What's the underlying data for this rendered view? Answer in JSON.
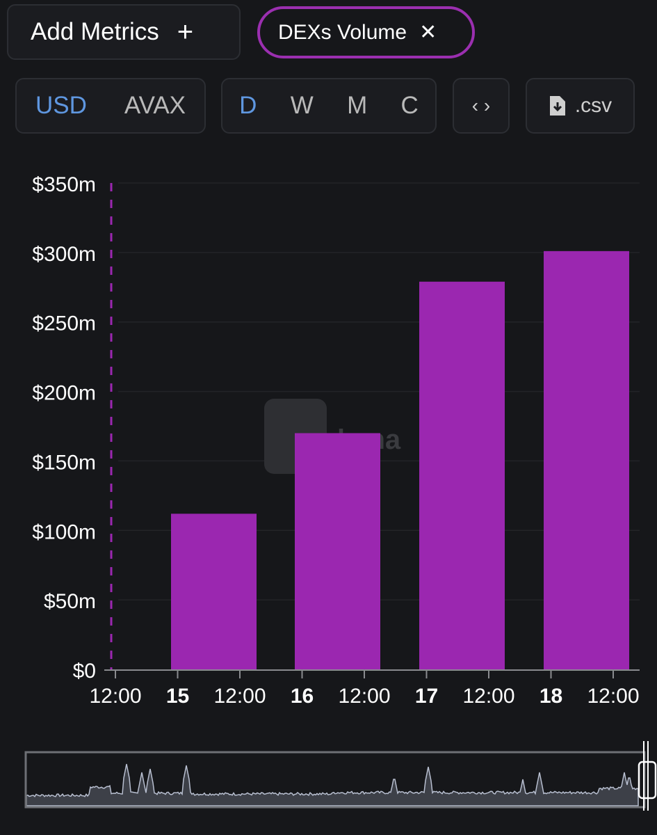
{
  "toolbar": {
    "add_metrics_label": "Add Metrics",
    "add_icon": "plus-icon",
    "metric_chip": "DEXs Volume",
    "chip_close_icon": "close-icon",
    "currency": [
      "USD",
      "AVAX"
    ],
    "currency_selected": "USD",
    "periods": [
      "D",
      "W",
      "M",
      "C"
    ],
    "period_selected": "D",
    "embed_icon": "code-brackets-icon",
    "csv_label": ".csv",
    "csv_icon": "file-download-icon"
  },
  "colors": {
    "bar": "#9b27b0",
    "active": "#5f97e0",
    "background": "#16171a"
  },
  "chart_data": {
    "type": "bar",
    "categories": [
      "15",
      "16",
      "17",
      "18"
    ],
    "values": [
      112000000,
      170000000,
      279000000,
      301000000
    ],
    "ylim": [
      0,
      350000000
    ],
    "yticks": [
      "$0",
      "$50m",
      "$100m",
      "$150m",
      "$200m",
      "$250m",
      "$300m",
      "$350m"
    ],
    "xticks": [
      {
        "label": "12:00",
        "bold": false
      },
      {
        "label": "15",
        "bold": true
      },
      {
        "label": "12:00",
        "bold": false
      },
      {
        "label": "16",
        "bold": true
      },
      {
        "label": "12:00",
        "bold": false
      },
      {
        "label": "17",
        "bold": true
      },
      {
        "label": "12:00",
        "bold": false
      },
      {
        "label": "18",
        "bold": true
      },
      {
        "label": "12:00",
        "bold": false
      }
    ],
    "grid": true,
    "watermark": "DefiLlama"
  }
}
